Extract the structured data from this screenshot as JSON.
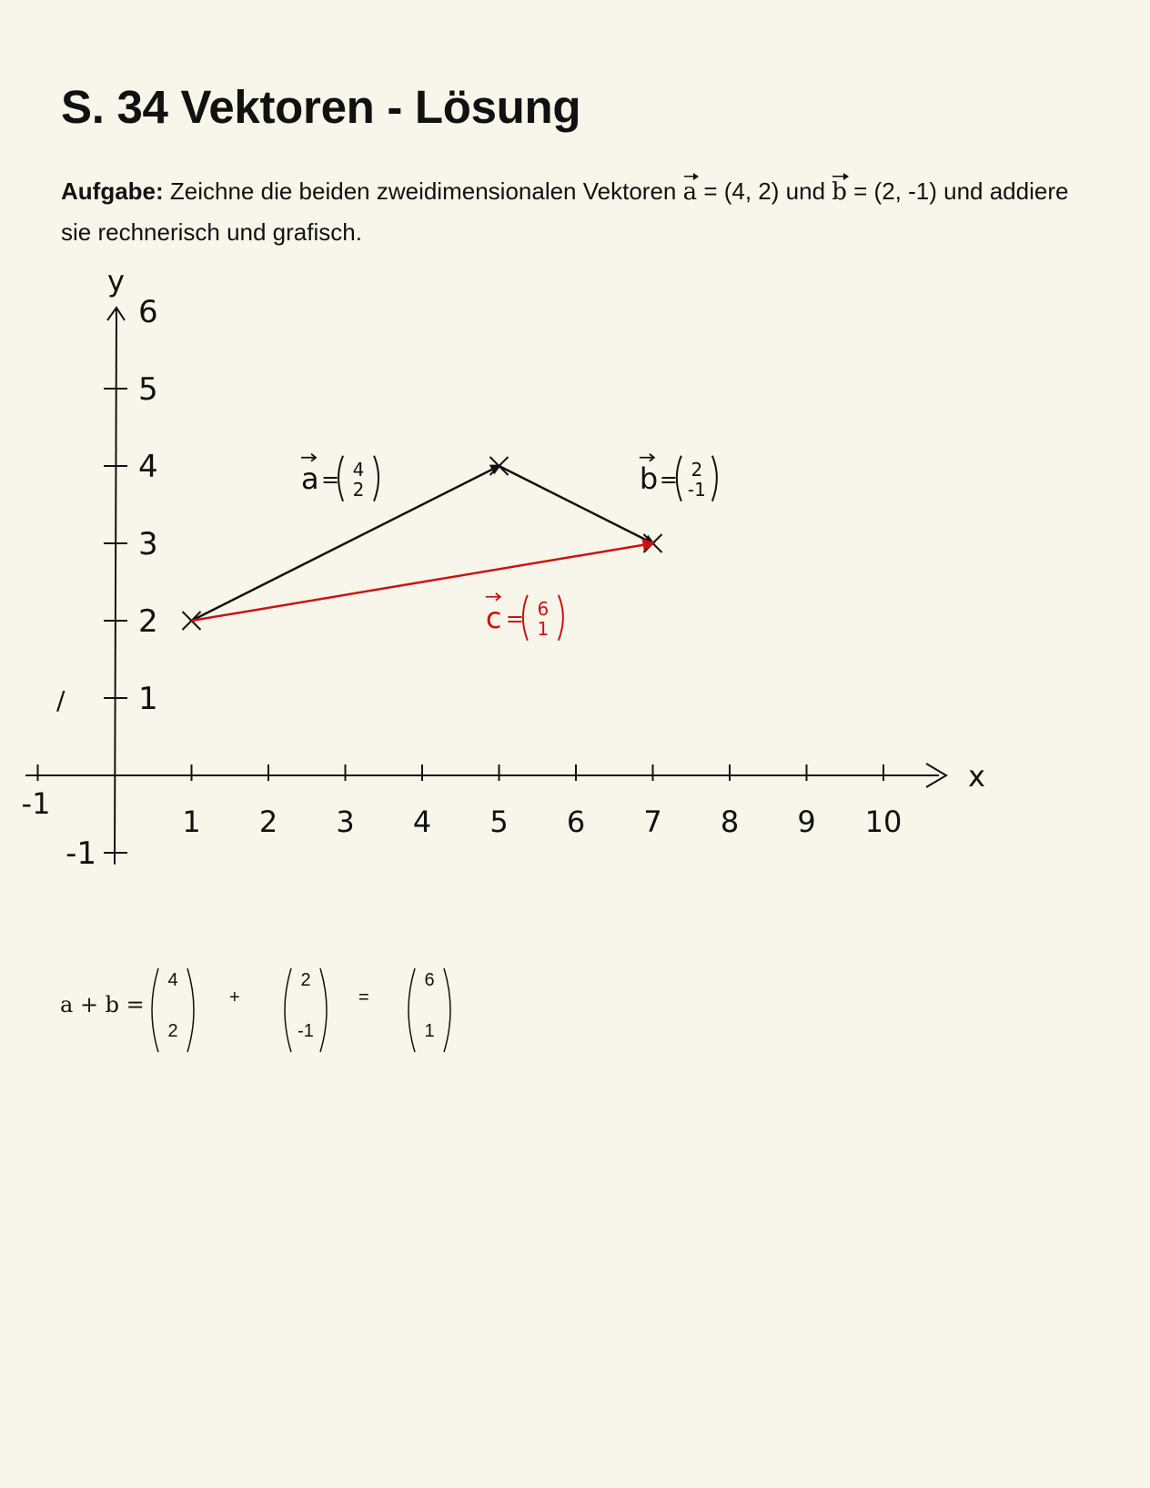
{
  "page": {
    "title": "S. 34 Vektoren - Lösung",
    "task": {
      "label": "Aufgabe:",
      "text_1": " Zeichne die beiden zweidimensionalen Vektoren ",
      "vec_a": "a",
      "text_2": " = (4, 2) und ",
      "vec_b": "b",
      "text_3": " = (2, -1) und addiere sie rechnerisch und grafisch."
    }
  },
  "chart_data": {
    "type": "diagram",
    "x_axis": {
      "label": "x",
      "ticks": [
        "-1",
        "1",
        "2",
        "3",
        "4",
        "5",
        "6",
        "7",
        "8",
        "9",
        "10"
      ]
    },
    "y_axis": {
      "label": "y",
      "ticks": [
        "-1",
        "1",
        "2",
        "3",
        "4",
        "5",
        "6"
      ]
    },
    "start_point": [
      1,
      2
    ],
    "vectors": [
      {
        "label": "a",
        "components": [
          "4",
          "2"
        ],
        "from": [
          1,
          2
        ],
        "to": [
          5,
          4
        ],
        "color": "#111111"
      },
      {
        "label": "b",
        "components": [
          "2",
          "-1"
        ],
        "from": [
          5,
          4
        ],
        "to": [
          7,
          3
        ],
        "color": "#111111"
      },
      {
        "label": "c",
        "components": [
          "6",
          "1"
        ],
        "from": [
          1,
          2
        ],
        "to": [
          7,
          3
        ],
        "color": "#cc1111"
      }
    ],
    "stray_mark": "/"
  },
  "sum": {
    "lhs": "a + b =",
    "m1": [
      "4",
      "2"
    ],
    "plus": "+",
    "m2": [
      "2",
      "-1"
    ],
    "eq": "=",
    "m3": [
      "6",
      "1"
    ]
  }
}
